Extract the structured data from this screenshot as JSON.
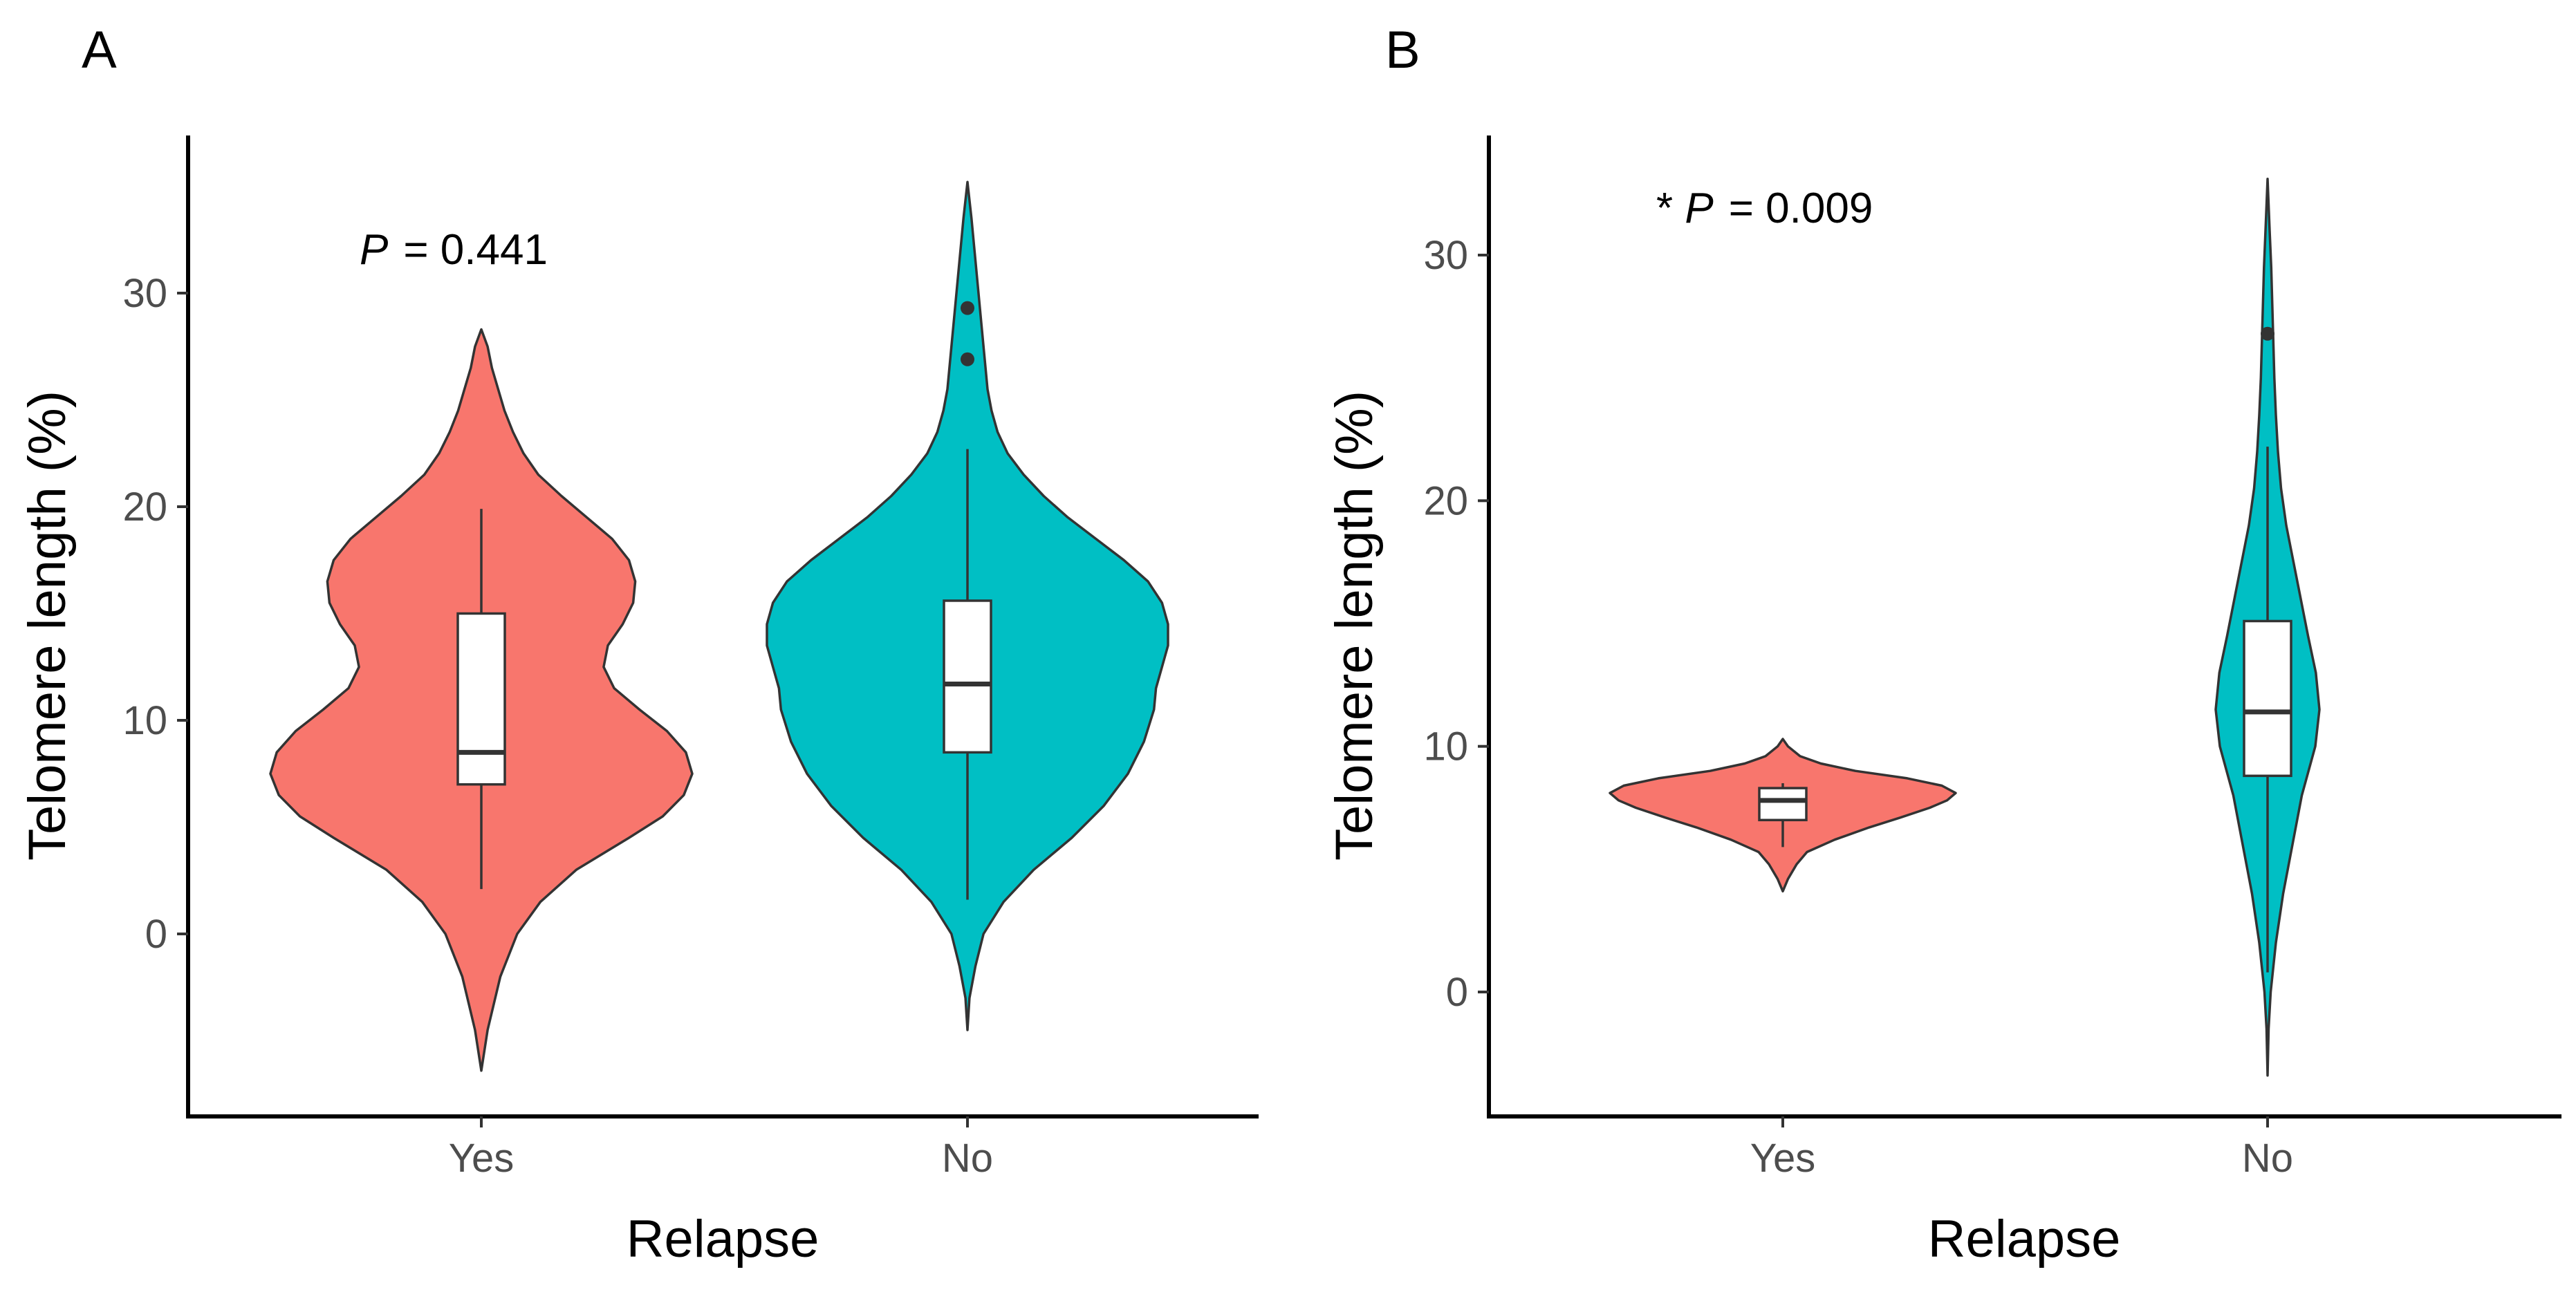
{
  "chart_data": [
    {
      "type": "violin",
      "panel_label": "A",
      "xlabel": "Relapse",
      "ylabel": "Telomere length (%)",
      "ylim": [
        -8.5,
        36
      ],
      "y_ticks": [
        0,
        10,
        20,
        30
      ],
      "y_tick_labels": [
        "0",
        "10",
        "20",
        "30"
      ],
      "annotation": {
        "prefix": "",
        "p_symbol": "P",
        "text": "= 0.441"
      },
      "categories": [
        "Yes",
        "No"
      ],
      "groups": [
        {
          "name": "Yes",
          "color": "#F8766D",
          "violin_min": -6.4,
          "violin_max": 28.3,
          "box": {
            "whisker_low": 2.1,
            "q1": 7.0,
            "median": 8.5,
            "q3": 15.0,
            "whisker_high": 19.9
          },
          "outliers": [],
          "density_profile": [
            [
              -6.4,
              0
            ],
            [
              -4.5,
              0.03
            ],
            [
              -2,
              0.09
            ],
            [
              0,
              0.17
            ],
            [
              1.5,
              0.28
            ],
            [
              3,
              0.45
            ],
            [
              4.5,
              0.7
            ],
            [
              5.5,
              0.86
            ],
            [
              6.5,
              0.96
            ],
            [
              7.5,
              1.0
            ],
            [
              8.5,
              0.97
            ],
            [
              9.5,
              0.88
            ],
            [
              10.5,
              0.75
            ],
            [
              11.5,
              0.63
            ],
            [
              12.5,
              0.58
            ],
            [
              13.5,
              0.6
            ],
            [
              14.5,
              0.67
            ],
            [
              15.5,
              0.72
            ],
            [
              16.5,
              0.73
            ],
            [
              17.5,
              0.7
            ],
            [
              18.5,
              0.62
            ],
            [
              19.5,
              0.5
            ],
            [
              20.5,
              0.38
            ],
            [
              21.5,
              0.27
            ],
            [
              22.5,
              0.2
            ],
            [
              23.5,
              0.15
            ],
            [
              24.5,
              0.11
            ],
            [
              25.5,
              0.08
            ],
            [
              26.5,
              0.05
            ],
            [
              27.5,
              0.03
            ],
            [
              28.3,
              0
            ]
          ]
        },
        {
          "name": "No",
          "color": "#00BFC4",
          "violin_min": -4.5,
          "violin_max": 35.2,
          "box": {
            "whisker_low": 1.6,
            "q1": 8.5,
            "median": 11.7,
            "q3": 15.6,
            "whisker_high": 22.7
          },
          "outliers": [
            26.9,
            29.3
          ],
          "density_profile": [
            [
              -4.5,
              0
            ],
            [
              -3,
              0.01
            ],
            [
              -1.5,
              0.04
            ],
            [
              0,
              0.08
            ],
            [
              1.5,
              0.18
            ],
            [
              3,
              0.33
            ],
            [
              4.5,
              0.52
            ],
            [
              6,
              0.68
            ],
            [
              7.5,
              0.8
            ],
            [
              9,
              0.88
            ],
            [
              10.5,
              0.93
            ],
            [
              11.5,
              0.94
            ],
            [
              12.5,
              0.97
            ],
            [
              13.5,
              1.0
            ],
            [
              14.5,
              1.0
            ],
            [
              15.5,
              0.97
            ],
            [
              16.5,
              0.9
            ],
            [
              17.5,
              0.78
            ],
            [
              18.5,
              0.64
            ],
            [
              19.5,
              0.5
            ],
            [
              20.5,
              0.38
            ],
            [
              21.5,
              0.28
            ],
            [
              22.5,
              0.2
            ],
            [
              23.5,
              0.15
            ],
            [
              24.5,
              0.12
            ],
            [
              25.5,
              0.1
            ],
            [
              26.5,
              0.09
            ],
            [
              27.5,
              0.08
            ],
            [
              28.5,
              0.07
            ],
            [
              29.5,
              0.06
            ],
            [
              30.5,
              0.05
            ],
            [
              31.5,
              0.04
            ],
            [
              32.5,
              0.03
            ],
            [
              33.5,
              0.02
            ],
            [
              35.2,
              0
            ]
          ]
        }
      ]
    },
    {
      "type": "violin",
      "panel_label": "B",
      "xlabel": "Relapse",
      "ylabel": "Telomere length (%)",
      "ylim": [
        -5,
        35
      ],
      "y_ticks": [
        0,
        10,
        20,
        30
      ],
      "y_tick_labels": [
        "0",
        "10",
        "20",
        "30"
      ],
      "annotation": {
        "prefix": "* ",
        "p_symbol": "P",
        "text": "= 0.009"
      },
      "categories": [
        "Yes",
        "No"
      ],
      "groups": [
        {
          "name": "Yes",
          "color": "#F8766D",
          "violin_min": 4.1,
          "violin_max": 10.3,
          "box": {
            "whisker_low": 5.9,
            "q1": 7.0,
            "median": 7.8,
            "q3": 8.3,
            "whisker_high": 8.5
          },
          "outliers": [],
          "density_profile": [
            [
              4.1,
              0
            ],
            [
              4.6,
              0.03
            ],
            [
              5.2,
              0.08
            ],
            [
              5.7,
              0.14
            ],
            [
              6.2,
              0.3
            ],
            [
              6.7,
              0.5
            ],
            [
              7.1,
              0.68
            ],
            [
              7.5,
              0.85
            ],
            [
              7.8,
              0.95
            ],
            [
              8.1,
              1.0
            ],
            [
              8.4,
              0.92
            ],
            [
              8.7,
              0.72
            ],
            [
              9.0,
              0.42
            ],
            [
              9.3,
              0.22
            ],
            [
              9.6,
              0.1
            ],
            [
              10.0,
              0.03
            ],
            [
              10.3,
              0
            ]
          ]
        },
        {
          "name": "No",
          "color": "#00BFC4",
          "violin_min": -3.4,
          "violin_max": 33.1,
          "box": {
            "whisker_low": 0.8,
            "q1": 8.8,
            "median": 11.4,
            "q3": 15.1,
            "whisker_high": 22.2
          },
          "outliers": [
            26.8
          ],
          "density_profile": [
            [
              -3.4,
              0
            ],
            [
              -1.5,
              0.02
            ],
            [
              0,
              0.06
            ],
            [
              2,
              0.16
            ],
            [
              4,
              0.3
            ],
            [
              6,
              0.48
            ],
            [
              8,
              0.66
            ],
            [
              10,
              0.92
            ],
            [
              11.5,
              1.0
            ],
            [
              13,
              0.93
            ],
            [
              14.5,
              0.78
            ],
            [
              16,
              0.64
            ],
            [
              17.5,
              0.5
            ],
            [
              19,
              0.36
            ],
            [
              20.5,
              0.26
            ],
            [
              22,
              0.2
            ],
            [
              23.5,
              0.16
            ],
            [
              25,
              0.13
            ],
            [
              26.5,
              0.11
            ],
            [
              28,
              0.09
            ],
            [
              29.5,
              0.07
            ],
            [
              31,
              0.04
            ],
            [
              33.1,
              0
            ]
          ]
        }
      ]
    }
  ]
}
